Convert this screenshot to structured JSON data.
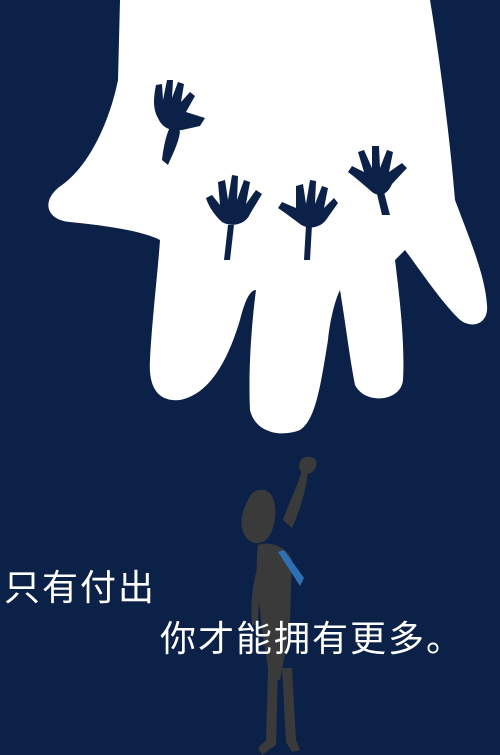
{
  "poster": {
    "caption_line_1": "只有付出",
    "caption_line_2": "你才能拥有更多。",
    "colors": {
      "background": "#0c2147",
      "hand": "#ffffff",
      "figure": "#3a3a3a",
      "tie": "#2f6fb5"
    },
    "illustration": {
      "giant_hand": "large-white-hand",
      "small_hands_count": 4,
      "figure": "man-reaching-up"
    }
  }
}
